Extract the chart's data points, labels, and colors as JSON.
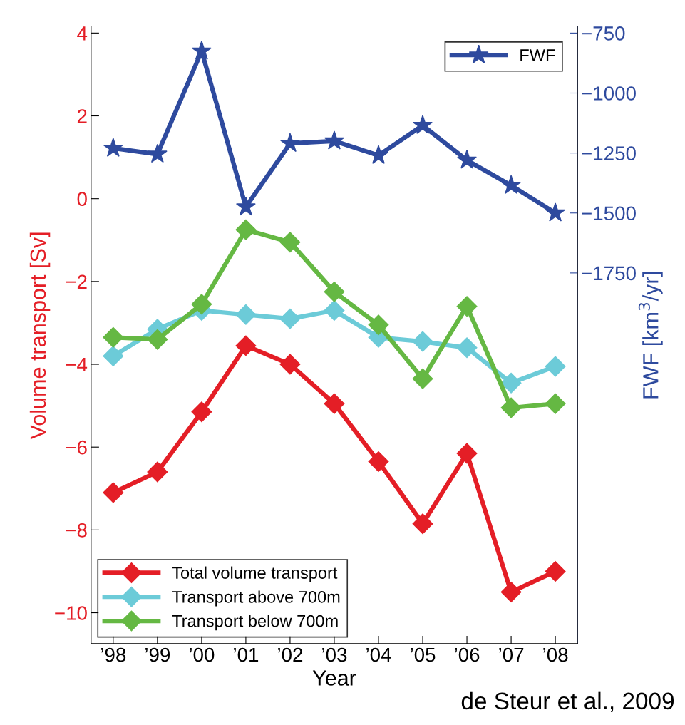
{
  "chart_data": {
    "type": "line",
    "xlabel": "Year",
    "ylabel": "Volume transport [Sv]",
    "y2label": "FWF [km$^{3}$/yr]",
    "x": [
      1998,
      1999,
      2000,
      2001,
      2002,
      2003,
      2004,
      2005,
      2006,
      2007,
      2008
    ],
    "xlim": [
      1997.5,
      2008.5
    ],
    "xticks": [
      {
        "value": 1998,
        "label": "’98"
      },
      {
        "value": 1999,
        "label": "’99"
      },
      {
        "value": 2000,
        "label": "’00"
      },
      {
        "value": 2001,
        "label": "’01"
      },
      {
        "value": 2002,
        "label": "’02"
      },
      {
        "value": 2003,
        "label": "’03"
      },
      {
        "value": 2004,
        "label": "’04"
      },
      {
        "value": 2005,
        "label": "’05"
      },
      {
        "value": 2006,
        "label": "’06"
      },
      {
        "value": 2007,
        "label": "’07"
      },
      {
        "value": 2008,
        "label": "’08"
      }
    ],
    "ylim": [
      -10.75,
      4.15
    ],
    "yticks": [
      -10,
      -8,
      -6,
      -4,
      -2,
      0,
      2,
      4
    ],
    "y2lim": [
      -3296,
      -724
    ],
    "y2ticks": [
      -1750,
      -1500,
      -1250,
      -1000,
      -750
    ],
    "legend": "bottom left",
    "grid": false,
    "line_style": "solid",
    "series": [
      {
        "name": "FWF",
        "color": "#2e4a9e",
        "axis": "y2",
        "marker": "star",
        "values": [
          -1230,
          -1255,
          -825,
          -1475,
          -1210,
          -1200,
          -1260,
          -1135,
          -1280,
          -1385,
          -1500
        ]
      },
      {
        "name": "Total volume transport",
        "color": "#e41e26",
        "marker": "diamond",
        "values": [
          -7.1,
          -6.6,
          -5.15,
          -3.55,
          -4.0,
          -4.95,
          -6.35,
          -7.85,
          -6.15,
          -9.5,
          -9.0
        ]
      },
      {
        "name": "Transport above 700m",
        "color": "#6ccbd8",
        "marker": "diamond",
        "values": [
          -3.8,
          -3.15,
          -2.7,
          -2.8,
          -2.9,
          -2.7,
          -3.35,
          -3.45,
          -3.6,
          -4.45,
          -4.05
        ]
      },
      {
        "name": "Transport below 700m",
        "color": "#65b843",
        "marker": "diamond",
        "values": [
          -3.35,
          -3.4,
          -2.55,
          -0.75,
          -1.05,
          -2.25,
          -3.05,
          -4.35,
          -2.6,
          -5.05,
          -4.95
        ]
      }
    ],
    "annotations": [
      "de Steur et al., 2009"
    ]
  }
}
